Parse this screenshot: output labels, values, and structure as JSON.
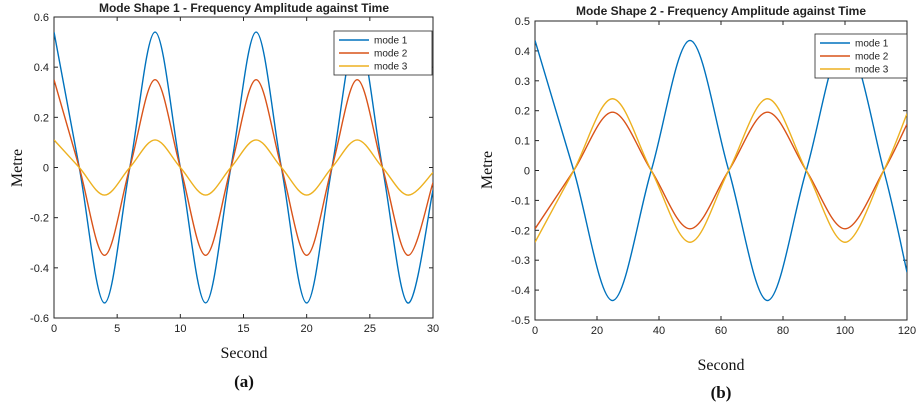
{
  "chart_data": [
    {
      "type": "line",
      "panel_label": "(a)",
      "title": "Mode Shape 1 - Frequency Amplitude against Time",
      "xlabel": "Second",
      "ylabel": "Metre",
      "xlim": [
        0,
        30
      ],
      "ylim": [
        -0.6,
        0.6
      ],
      "xticks": [
        0,
        5,
        10,
        15,
        20,
        25,
        30
      ],
      "xtick_labels": [
        "0",
        "5",
        "10",
        "15",
        "20",
        "25",
        "30"
      ],
      "yticks": [
        -0.6,
        -0.4,
        -0.2,
        0,
        0.2,
        0.4,
        0.6
      ],
      "ytick_labels": [
        "-0.6",
        "-0.4",
        "-0.2",
        "0",
        "0.2",
        "0.4",
        "0.6"
      ],
      "grid": false,
      "legend_position": "top-right",
      "series": [
        {
          "name": "mode 1",
          "color": "#0072BD",
          "x": [
            0,
            2,
            4,
            6,
            8,
            10,
            12,
            14,
            16,
            18,
            20,
            22,
            24,
            26,
            28,
            30
          ],
          "y": [
            0.54,
            0,
            -0.54,
            0,
            0.54,
            0,
            -0.54,
            0,
            0.54,
            0,
            -0.54,
            0,
            0.54,
            0,
            -0.54,
            -0.09
          ]
        },
        {
          "name": "mode 2",
          "color": "#D95319",
          "x": [
            0,
            2,
            4,
            6,
            8,
            10,
            12,
            14,
            16,
            18,
            20,
            22,
            24,
            26,
            28,
            30
          ],
          "y": [
            0.35,
            0,
            -0.35,
            0,
            0.35,
            0,
            -0.35,
            0,
            0.35,
            0,
            -0.35,
            0,
            0.35,
            0,
            -0.35,
            -0.06
          ]
        },
        {
          "name": "mode 3",
          "color": "#EDB120",
          "x": [
            0,
            2,
            4,
            6,
            8,
            10,
            12,
            14,
            16,
            18,
            20,
            22,
            24,
            26,
            28,
            30
          ],
          "y": [
            0.11,
            0,
            -0.11,
            0,
            0.11,
            0,
            -0.11,
            0,
            0.11,
            0,
            -0.11,
            0,
            0.11,
            0,
            -0.11,
            -0.02
          ]
        }
      ]
    },
    {
      "type": "line",
      "panel_label": "(b)",
      "title": "Mode Shape 2 - Frequency Amplitude against Time",
      "xlabel": "Second",
      "ylabel": "Metre",
      "xlim": [
        0,
        120
      ],
      "ylim": [
        -0.5,
        0.5
      ],
      "xticks": [
        0,
        20,
        40,
        60,
        80,
        100,
        120
      ],
      "xtick_labels": [
        "0",
        "20",
        "40",
        "60",
        "80",
        "100",
        "120"
      ],
      "yticks": [
        -0.5,
        -0.4,
        -0.3,
        -0.2,
        -0.1,
        0,
        0.1,
        0.2,
        0.3,
        0.4,
        0.5
      ],
      "ytick_labels": [
        "-0.5",
        "-0.4",
        "-0.3",
        "-0.2",
        "-0.1",
        "0",
        "0.1",
        "0.2",
        "0.3",
        "0.4",
        "0.5"
      ],
      "grid": false,
      "legend_position": "top-right",
      "series": [
        {
          "name": "mode 1",
          "color": "#0072BD",
          "x": [
            0,
            12.5,
            25,
            37.5,
            50,
            62.5,
            75,
            87.5,
            100,
            112.5,
            120
          ],
          "y": [
            0.435,
            0,
            -0.435,
            0,
            0.435,
            0,
            -0.435,
            0,
            0.435,
            0,
            -0.34
          ]
        },
        {
          "name": "mode 2",
          "color": "#D95319",
          "x": [
            0,
            12.5,
            25,
            37.5,
            50,
            62.5,
            75,
            87.5,
            100,
            112.5,
            120
          ],
          "y": [
            -0.195,
            0,
            0.195,
            0,
            -0.195,
            0,
            0.195,
            0,
            -0.195,
            0,
            0.155
          ]
        },
        {
          "name": "mode 3",
          "color": "#EDB120",
          "x": [
            0,
            12.5,
            25,
            37.5,
            50,
            62.5,
            75,
            87.5,
            100,
            112.5,
            120
          ],
          "y": [
            -0.24,
            0,
            0.24,
            0,
            -0.24,
            0,
            0.24,
            0,
            -0.24,
            0,
            0.19
          ]
        }
      ]
    }
  ]
}
